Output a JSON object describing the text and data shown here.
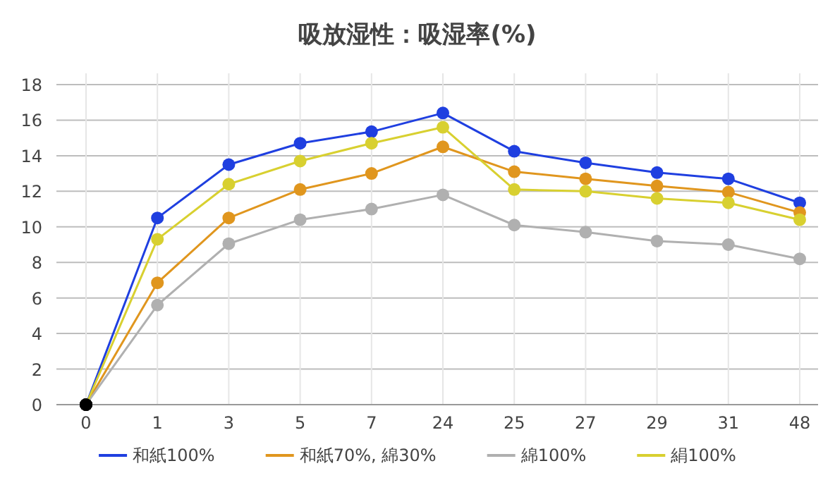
{
  "chart_data": {
    "type": "line",
    "title": "吸放湿性：吸湿率(%)",
    "categories": [
      "0",
      "1",
      "3",
      "5",
      "7",
      "24",
      "25",
      "27",
      "29",
      "31",
      "48"
    ],
    "ylim": [
      0,
      18
    ],
    "yticks": [
      0,
      2,
      4,
      6,
      8,
      10,
      12,
      14,
      16,
      18
    ],
    "grid": true,
    "legend": "bottom",
    "marker": "circle",
    "line_style": "solid",
    "series": [
      {
        "name": "和紙100%",
        "color": "#1f3fe0",
        "colors": [
          "#000000",
          "#1f3fe0",
          "#1f3fe0",
          "#1f3fe0",
          "#1f3fe0",
          "#1f3fe0",
          "#1f3fe0",
          "#1f3fe0",
          "#1f3fe0",
          "#1f3fe0",
          "#1f3fe0"
        ],
        "values": [
          0,
          10.5,
          13.5,
          14.7,
          15.35,
          16.4,
          14.25,
          13.6,
          13.05,
          12.7,
          11.35
        ]
      },
      {
        "name": "和紙70%, 綿30%",
        "color": "#e0961e",
        "colors": [
          "#000000",
          "#e0961e",
          "#e0961e",
          "#e0961e",
          "#e0961e",
          "#e0961e",
          "#e0961e",
          "#e0961e",
          "#e0961e",
          "#e0961e",
          "#e0961e"
        ],
        "values": [
          0,
          6.85,
          10.5,
          12.1,
          13.0,
          14.5,
          13.1,
          12.7,
          12.3,
          11.95,
          10.8
        ]
      },
      {
        "name": "綿100%",
        "color": "#b0b0b0",
        "colors": [
          "#000000",
          "#b0b0b0",
          "#b0b0b0",
          "#b0b0b0",
          "#b0b0b0",
          "#b0b0b0",
          "#b0b0b0",
          "#b0b0b0",
          "#b0b0b0",
          "#b0b0b0",
          "#b0b0b0"
        ],
        "values": [
          0,
          5.6,
          9.05,
          10.4,
          11.0,
          11.8,
          10.1,
          9.7,
          9.2,
          9.0,
          8.2
        ]
      },
      {
        "name": "絹100%",
        "color": "#d8d030",
        "colors": [
          "#000000",
          "#d8d030",
          "#d8d030",
          "#d8d030",
          "#d8d030",
          "#d8d030",
          "#d8d030",
          "#d8d030",
          "#d8d030",
          "#d8d030",
          "#d8d030"
        ],
        "values": [
          0,
          9.3,
          12.4,
          13.7,
          14.7,
          15.6,
          12.1,
          12.0,
          11.6,
          11.35,
          10.4
        ]
      }
    ]
  }
}
